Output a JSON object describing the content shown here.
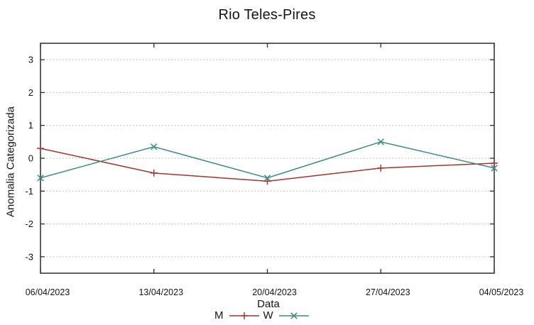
{
  "title": "Rio Teles-Pires",
  "chart_data": {
    "type": "line",
    "title": "Rio Teles-Pires",
    "xlabel": "Data",
    "ylabel": "Anomalia Categorizada",
    "x_tick_labels": [
      "06/04/2023",
      "13/04/2023",
      "20/04/2023",
      "27/04/2023",
      "04/05/2023"
    ],
    "y_ticks": [
      -3,
      -2,
      -1,
      0,
      1,
      2,
      3
    ],
    "ylim": [
      -3.5,
      3.5
    ],
    "grid": "horizontal-dotted",
    "legend_position": "bottom-center",
    "series": [
      {
        "name": "M",
        "color": "#a5342c",
        "marker": "plus",
        "values": [
          0.3,
          -0.45,
          -0.7,
          -0.3,
          -0.15
        ]
      },
      {
        "name": "W",
        "color": "#3c8c84",
        "marker": "cross",
        "values": [
          -0.6,
          0.35,
          -0.6,
          0.5,
          -0.3
        ]
      }
    ],
    "style_colors": {
      "axis": "#2b2b2b",
      "grid": "#ababab",
      "text": "#141414"
    }
  }
}
